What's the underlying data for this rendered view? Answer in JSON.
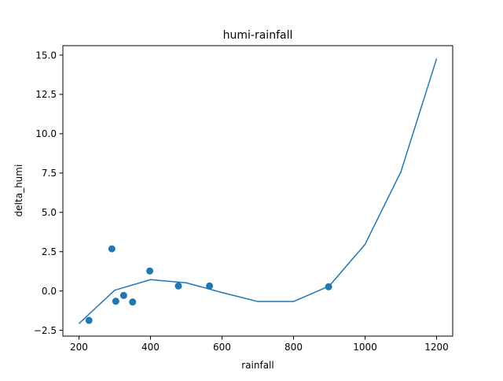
{
  "chart_data": {
    "type": "line",
    "title": "humi-rainfall",
    "xlabel": "rainfall",
    "ylabel": "delta_humi",
    "xlim": [
      155,
      1245
    ],
    "ylim": [
      -2.87,
      15.6
    ],
    "xticks": [
      200,
      400,
      600,
      800,
      1000,
      1200
    ],
    "xtick_labels": [
      "200",
      "400",
      "600",
      "800",
      "1000",
      "1200"
    ],
    "yticks": [
      -2.5,
      0.0,
      2.5,
      5.0,
      7.5,
      10.0,
      12.5,
      15.0
    ],
    "ytick_labels": [
      "−2.5",
      "0.0",
      "2.5",
      "5.0",
      "7.5",
      "10.0",
      "12.5",
      "15.0"
    ],
    "grid": false,
    "legend": false,
    "series": [
      {
        "kind": "scatter",
        "color": "#1f77b4",
        "points": [
          {
            "x": 228,
            "y": -1.87
          },
          {
            "x": 292,
            "y": 2.68
          },
          {
            "x": 303,
            "y": -0.65
          },
          {
            "x": 325,
            "y": -0.28
          },
          {
            "x": 350,
            "y": -0.7
          },
          {
            "x": 398,
            "y": 1.27
          },
          {
            "x": 478,
            "y": 0.32
          },
          {
            "x": 565,
            "y": 0.32
          },
          {
            "x": 898,
            "y": 0.27
          }
        ]
      },
      {
        "kind": "line",
        "color": "#1f77b4",
        "points": [
          {
            "x": 200,
            "y": -2.07
          },
          {
            "x": 300,
            "y": 0.05
          },
          {
            "x": 400,
            "y": 0.72
          },
          {
            "x": 500,
            "y": 0.52
          },
          {
            "x": 600,
            "y": -0.1
          },
          {
            "x": 700,
            "y": -0.67
          },
          {
            "x": 800,
            "y": -0.67
          },
          {
            "x": 900,
            "y": 0.32
          },
          {
            "x": 1000,
            "y": 2.97
          },
          {
            "x": 1100,
            "y": 7.57
          },
          {
            "x": 1200,
            "y": 14.77
          }
        ]
      }
    ]
  }
}
